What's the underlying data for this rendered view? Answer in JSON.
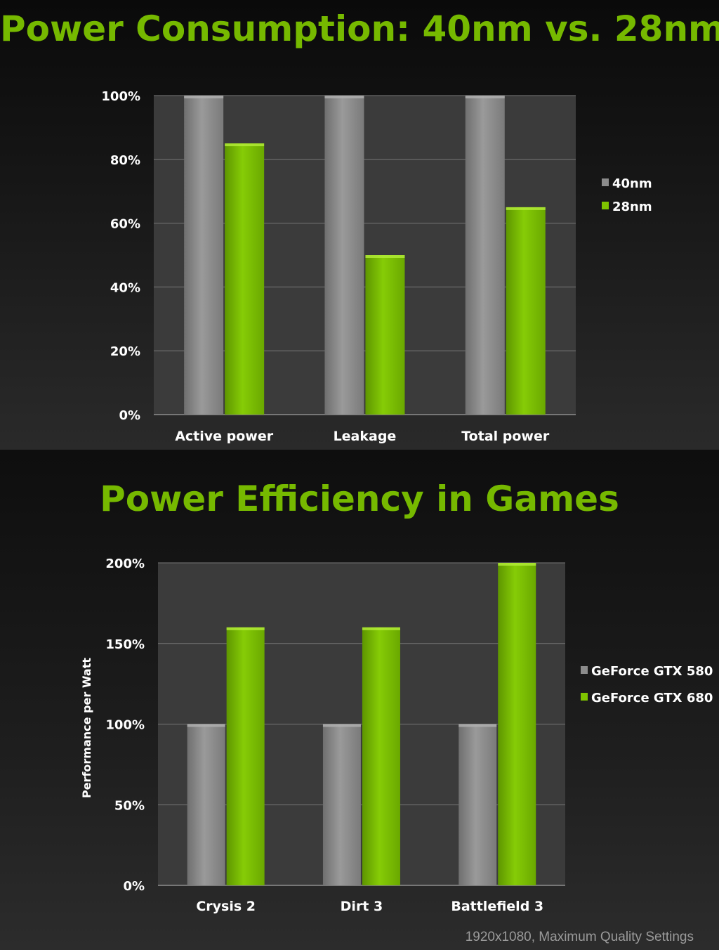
{
  "colors": {
    "accent": "#76b900",
    "bar_green": "#7fc400",
    "bar_gray": "#8c8c8c",
    "plot_bg": "#3b3b3b",
    "grid": "#777777"
  },
  "chart_data": [
    {
      "type": "bar",
      "title": "Power Consumption: 40nm vs. 28nm",
      "xlabel": "",
      "ylabel": "",
      "categories": [
        "Active power",
        "Leakage",
        "Total power"
      ],
      "series": [
        {
          "name": "40nm",
          "values": [
            100,
            100,
            100
          ],
          "color": "#8c8c8c"
        },
        {
          "name": "28nm",
          "values": [
            85,
            50,
            65
          ],
          "color": "#7fc400"
        }
      ],
      "ylim": [
        0,
        100
      ],
      "yticks": [
        "0%",
        "20%",
        "40%",
        "60%",
        "80%",
        "100%"
      ],
      "ytick_values": [
        0,
        20,
        40,
        60,
        80,
        100
      ],
      "grid": true,
      "legend": "right"
    },
    {
      "type": "bar",
      "title": "Power Efficiency in Games",
      "xlabel": "",
      "ylabel": "Performance per Watt",
      "categories": [
        "Crysis 2",
        "Dirt 3",
        "Battlefield 3"
      ],
      "series": [
        {
          "name": "GeForce GTX 580",
          "values": [
            100,
            100,
            100
          ],
          "color": "#8c8c8c"
        },
        {
          "name": "GeForce GTX 680",
          "values": [
            160,
            160,
            200
          ],
          "color": "#7fc400"
        }
      ],
      "ylim": [
        0,
        200
      ],
      "yticks": [
        "0%",
        "50%",
        "100%",
        "150%",
        "200%"
      ],
      "ytick_values": [
        0,
        50,
        100,
        150,
        200
      ],
      "grid": true,
      "legend": "right"
    }
  ],
  "footnote": "1920x1080, Maximum Quality Settings"
}
